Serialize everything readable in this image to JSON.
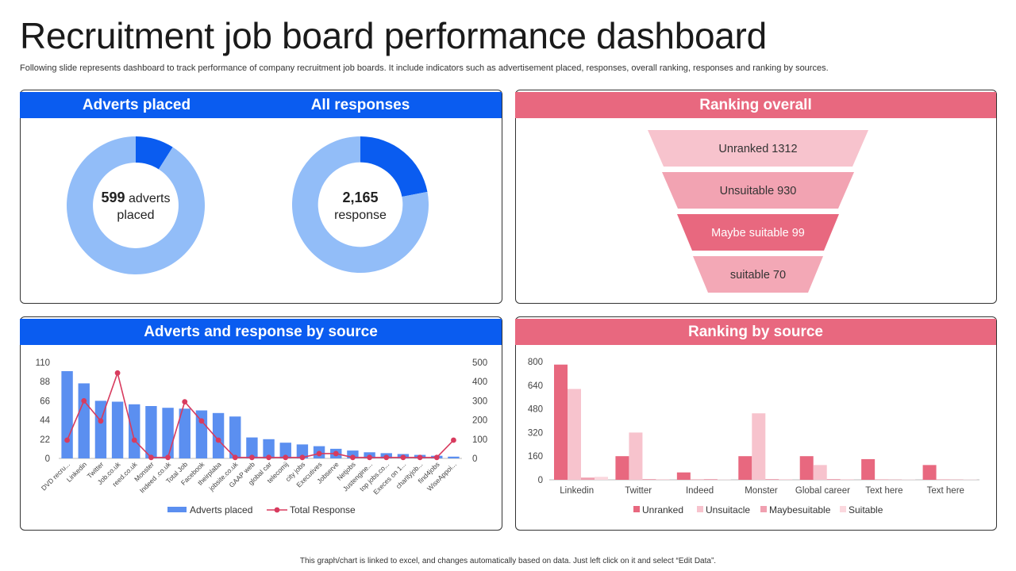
{
  "title": "Recruitment job board performance dashboard",
  "subtitle": "Following slide represents dashboard to track performance of company recruitment job boards. It include indicators such as advertisement placed, responses, overall ranking, responses and ranking by sources.",
  "footer": "This graph/chart is linked to excel, and changes automatically based on data. Just left click on it and select “Edit Data”.",
  "colors": {
    "blue": "#0a5cf0",
    "light_blue": "#92bdf8",
    "pink": "#e8687f",
    "bar_blue": "#5b8ff0",
    "line_red": "#d83b5e"
  },
  "adverts_panel": {
    "header_adverts": "Adverts placed",
    "header_responses": "All responses",
    "adverts_value": "599",
    "adverts_unit": "adverts",
    "adverts_caption": "placed",
    "responses_value": "2,165",
    "responses_caption": "response"
  },
  "ranking_panel": {
    "header": "Ranking overall",
    "funnel": [
      {
        "label": "Unranked 1312",
        "color": "#f7c3cd",
        "text_color": "#333333"
      },
      {
        "label": "Unsuitable 930",
        "color": "#f2a3b2",
        "text_color": "#333333"
      },
      {
        "label": "Maybe suitable 99",
        "color": "#e8687f",
        "text_color": "#ffffff"
      },
      {
        "label": "suitable 70",
        "color": "#f3a8b6",
        "text_color": "#333333"
      }
    ]
  },
  "source_panel": {
    "header": "Adverts and response by source"
  },
  "rank_source_panel": {
    "header": "Ranking by source"
  },
  "chart_data": [
    {
      "type": "pie",
      "title": "Adverts placed",
      "values": [
        9,
        91
      ],
      "colors": [
        "#0a5cf0",
        "#92bdf8"
      ]
    },
    {
      "type": "pie",
      "title": "All responses",
      "values": [
        22,
        78
      ],
      "colors": [
        "#0a5cf0",
        "#92bdf8"
      ]
    },
    {
      "type": "bar",
      "title": "Adverts and response by source",
      "categories": [
        "DVD recru...",
        "Linkedin",
        "Twitter",
        "Job.co.uk",
        "reed.co.uk",
        "Monster",
        "Indeed .co.uk",
        "Total Job",
        "Facebook",
        "theirplaba",
        "jobsite.co.uk",
        "GAAP web",
        "global car",
        "telecomij",
        "city jobs",
        "Executives",
        "Jobserve",
        "Netjobs",
        "Justengine...",
        "top jobs.co...",
        "Execes on 1...",
        "charityjob...",
        "find4jobs",
        "WiseAppoi..."
      ],
      "series": [
        {
          "name": "Adverts placed",
          "axis": "left",
          "values": [
            100,
            86,
            66,
            65,
            62,
            60,
            58,
            57,
            55,
            52,
            48,
            24,
            22,
            18,
            16,
            14,
            11,
            9,
            7,
            6,
            5,
            4,
            3,
            2
          ]
        },
        {
          "name": "Total Response",
          "axis": "right",
          "values": [
            95,
            300,
            195,
            445,
            95,
            5,
            5,
            295,
            195,
            95,
            5,
            5,
            5,
            5,
            5,
            25,
            25,
            5,
            5,
            5,
            5,
            5,
            5,
            95
          ]
        }
      ],
      "y_left_ticks": [
        "110",
        "88",
        "66",
        "44",
        "22",
        "0"
      ],
      "y_right_ticks": [
        "500",
        "400",
        "300",
        "200",
        "100",
        "0"
      ],
      "ylim_left": [
        0,
        110
      ],
      "ylim_right": [
        0,
        500
      ],
      "legend": [
        "Adverts placed",
        "Total Response"
      ]
    },
    {
      "type": "bar",
      "title": "Ranking by source",
      "categories": [
        "Linkedin",
        "Twitter",
        "Indeed",
        "Monster",
        "Global career",
        "Text here",
        "Text here"
      ],
      "series": [
        {
          "name": "Unranked",
          "color": "#e8687f",
          "values": [
            780,
            160,
            50,
            160,
            160,
            140,
            100
          ]
        },
        {
          "name": "Unsuitacle",
          "color": "#f7c3cd",
          "values": [
            615,
            320,
            5,
            450,
            100,
            5,
            5
          ]
        },
        {
          "name": "Maybesuitable",
          "color": "#f0a0b0",
          "values": [
            15,
            5,
            5,
            5,
            5,
            2,
            2
          ]
        },
        {
          "name": "Suitable",
          "color": "#fbd8de",
          "values": [
            20,
            5,
            2,
            5,
            5,
            2,
            2
          ]
        }
      ],
      "y_ticks": [
        "800",
        "640",
        "480",
        "320",
        "160",
        "0"
      ],
      "ylim": [
        0,
        800
      ],
      "legend": [
        "Unranked",
        "Unsuitacle",
        "Maybesuitable",
        "Suitable"
      ]
    }
  ]
}
